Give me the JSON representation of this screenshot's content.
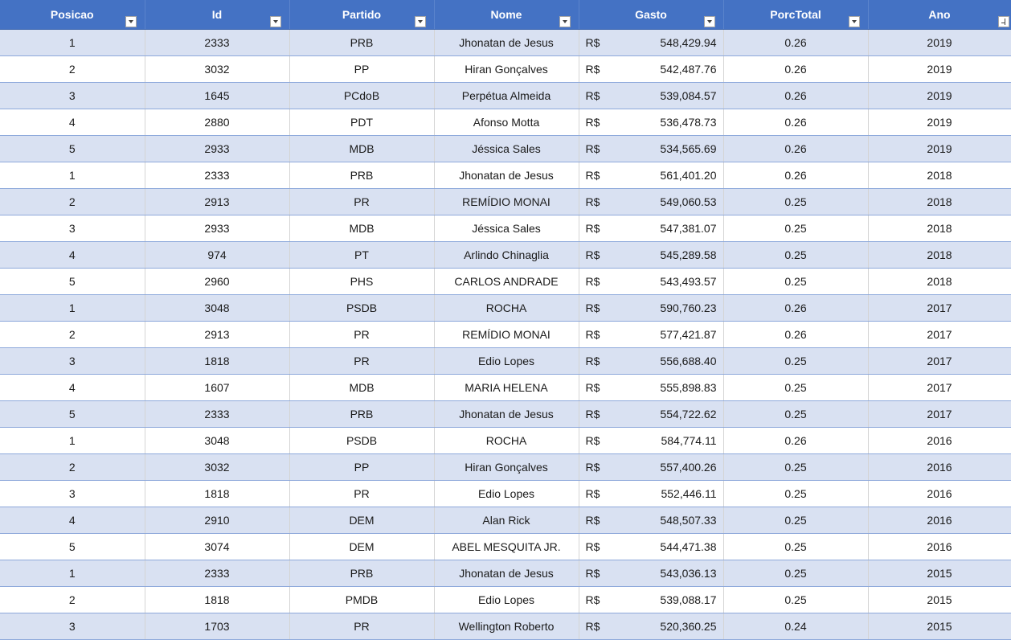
{
  "columns": [
    "Posicao",
    "Id",
    "Partido",
    "Nome",
    "Gasto",
    "PorcTotal",
    "Ano"
  ],
  "currency": "R$",
  "colors": {
    "header": "#4472c4",
    "band": "#d9e1f2",
    "row": "#ffffff"
  },
  "rows": [
    {
      "posicao": "1",
      "id": "2333",
      "partido": "PRB",
      "nome": "Jhonatan de Jesus",
      "gasto": "548,429.94",
      "porc": "0.26",
      "ano": "2019"
    },
    {
      "posicao": "2",
      "id": "3032",
      "partido": "PP",
      "nome": "Hiran Gonçalves",
      "gasto": "542,487.76",
      "porc": "0.26",
      "ano": "2019"
    },
    {
      "posicao": "3",
      "id": "1645",
      "partido": "PCdoB",
      "nome": "Perpétua Almeida",
      "gasto": "539,084.57",
      "porc": "0.26",
      "ano": "2019"
    },
    {
      "posicao": "4",
      "id": "2880",
      "partido": "PDT",
      "nome": "Afonso Motta",
      "gasto": "536,478.73",
      "porc": "0.26",
      "ano": "2019"
    },
    {
      "posicao": "5",
      "id": "2933",
      "partido": "MDB",
      "nome": "Jéssica Sales",
      "gasto": "534,565.69",
      "porc": "0.26",
      "ano": "2019"
    },
    {
      "posicao": "1",
      "id": "2333",
      "partido": "PRB",
      "nome": "Jhonatan de Jesus",
      "gasto": "561,401.20",
      "porc": "0.26",
      "ano": "2018"
    },
    {
      "posicao": "2",
      "id": "2913",
      "partido": "PR",
      "nome": "REMÍDIO MONAI",
      "gasto": "549,060.53",
      "porc": "0.25",
      "ano": "2018"
    },
    {
      "posicao": "3",
      "id": "2933",
      "partido": "MDB",
      "nome": "Jéssica Sales",
      "gasto": "547,381.07",
      "porc": "0.25",
      "ano": "2018"
    },
    {
      "posicao": "4",
      "id": "974",
      "partido": "PT",
      "nome": "Arlindo Chinaglia",
      "gasto": "545,289.58",
      "porc": "0.25",
      "ano": "2018"
    },
    {
      "posicao": "5",
      "id": "2960",
      "partido": "PHS",
      "nome": "CARLOS ANDRADE",
      "gasto": "543,493.57",
      "porc": "0.25",
      "ano": "2018"
    },
    {
      "posicao": "1",
      "id": "3048",
      "partido": "PSDB",
      "nome": "ROCHA",
      "gasto": "590,760.23",
      "porc": "0.26",
      "ano": "2017"
    },
    {
      "posicao": "2",
      "id": "2913",
      "partido": "PR",
      "nome": "REMÍDIO MONAI",
      "gasto": "577,421.87",
      "porc": "0.26",
      "ano": "2017"
    },
    {
      "posicao": "3",
      "id": "1818",
      "partido": "PR",
      "nome": "Edio Lopes",
      "gasto": "556,688.40",
      "porc": "0.25",
      "ano": "2017"
    },
    {
      "posicao": "4",
      "id": "1607",
      "partido": "MDB",
      "nome": "MARIA HELENA",
      "gasto": "555,898.83",
      "porc": "0.25",
      "ano": "2017"
    },
    {
      "posicao": "5",
      "id": "2333",
      "partido": "PRB",
      "nome": "Jhonatan de Jesus",
      "gasto": "554,722.62",
      "porc": "0.25",
      "ano": "2017"
    },
    {
      "posicao": "1",
      "id": "3048",
      "partido": "PSDB",
      "nome": "ROCHA",
      "gasto": "584,774.11",
      "porc": "0.26",
      "ano": "2016"
    },
    {
      "posicao": "2",
      "id": "3032",
      "partido": "PP",
      "nome": "Hiran Gonçalves",
      "gasto": "557,400.26",
      "porc": "0.25",
      "ano": "2016"
    },
    {
      "posicao": "3",
      "id": "1818",
      "partido": "PR",
      "nome": "Edio Lopes",
      "gasto": "552,446.11",
      "porc": "0.25",
      "ano": "2016"
    },
    {
      "posicao": "4",
      "id": "2910",
      "partido": "DEM",
      "nome": "Alan Rick",
      "gasto": "548,507.33",
      "porc": "0.25",
      "ano": "2016"
    },
    {
      "posicao": "5",
      "id": "3074",
      "partido": "DEM",
      "nome": "ABEL MESQUITA JR.",
      "gasto": "544,471.38",
      "porc": "0.25",
      "ano": "2016"
    },
    {
      "posicao": "1",
      "id": "2333",
      "partido": "PRB",
      "nome": "Jhonatan de Jesus",
      "gasto": "543,036.13",
      "porc": "0.25",
      "ano": "2015"
    },
    {
      "posicao": "2",
      "id": "1818",
      "partido": "PMDB",
      "nome": "Edio Lopes",
      "gasto": "539,088.17",
      "porc": "0.25",
      "ano": "2015"
    },
    {
      "posicao": "3",
      "id": "1703",
      "partido": "PR",
      "nome": "Wellington Roberto",
      "gasto": "520,360.25",
      "porc": "0.24",
      "ano": "2015"
    }
  ]
}
